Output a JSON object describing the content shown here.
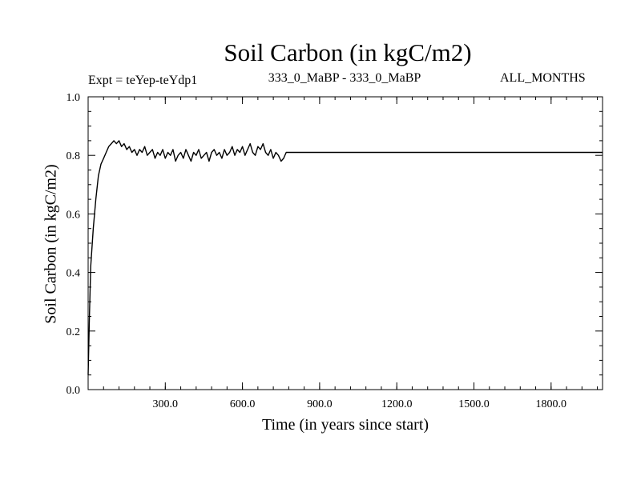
{
  "chart_data": {
    "type": "line",
    "title": "Soil Carbon (in kgC/m2)",
    "subtitle_left": "Expt = teYep-teYdp1",
    "subtitle_center": "333_0_MaBP - 333_0_MaBP",
    "subtitle_right": "ALL_MONTHS",
    "xlabel": "Time (in years since start)",
    "ylabel": "Soil Carbon (in kgC/m2)",
    "xlim": [
      0,
      2000
    ],
    "ylim": [
      0.0,
      1.0
    ],
    "x_ticks": [
      300,
      600,
      900,
      1200,
      1500,
      1800
    ],
    "x_tick_labels": [
      "300.0",
      "600.0",
      "900.0",
      "1200.0",
      "1500.0",
      "1800.0"
    ],
    "y_ticks": [
      0.0,
      0.2,
      0.4,
      0.6,
      0.8,
      1.0
    ],
    "y_tick_labels": [
      "0.0",
      "0.2",
      "0.4",
      "0.6",
      "0.8",
      "1.0"
    ],
    "grid": false,
    "series": [
      {
        "color": "#000000",
        "x": [
          0,
          5,
          10,
          20,
          30,
          40,
          50,
          60,
          70,
          80,
          90,
          100,
          110,
          120,
          130,
          140,
          150,
          160,
          170,
          180,
          190,
          200,
          210,
          220,
          230,
          240,
          250,
          260,
          270,
          280,
          290,
          300,
          310,
          320,
          330,
          340,
          350,
          360,
          370,
          380,
          390,
          400,
          410,
          420,
          430,
          440,
          450,
          460,
          470,
          480,
          490,
          500,
          510,
          520,
          530,
          540,
          550,
          560,
          570,
          580,
          590,
          600,
          610,
          620,
          630,
          640,
          650,
          660,
          670,
          680,
          690,
          700,
          710,
          720,
          730,
          740,
          750,
          760,
          770,
          800,
          1000,
          1200,
          1400,
          1600,
          1800,
          2000
        ],
        "y": [
          0.05,
          0.25,
          0.42,
          0.55,
          0.65,
          0.73,
          0.77,
          0.79,
          0.81,
          0.83,
          0.84,
          0.85,
          0.84,
          0.85,
          0.83,
          0.84,
          0.82,
          0.83,
          0.81,
          0.82,
          0.8,
          0.82,
          0.81,
          0.83,
          0.8,
          0.81,
          0.82,
          0.79,
          0.81,
          0.8,
          0.82,
          0.79,
          0.81,
          0.8,
          0.82,
          0.78,
          0.8,
          0.81,
          0.79,
          0.82,
          0.8,
          0.78,
          0.81,
          0.8,
          0.82,
          0.79,
          0.8,
          0.81,
          0.78,
          0.81,
          0.82,
          0.8,
          0.81,
          0.79,
          0.82,
          0.8,
          0.81,
          0.83,
          0.8,
          0.82,
          0.81,
          0.83,
          0.8,
          0.82,
          0.84,
          0.81,
          0.8,
          0.83,
          0.82,
          0.84,
          0.81,
          0.8,
          0.82,
          0.79,
          0.81,
          0.8,
          0.78,
          0.79,
          0.81,
          0.81,
          0.81,
          0.81,
          0.81,
          0.81,
          0.81,
          0.81
        ]
      }
    ]
  }
}
